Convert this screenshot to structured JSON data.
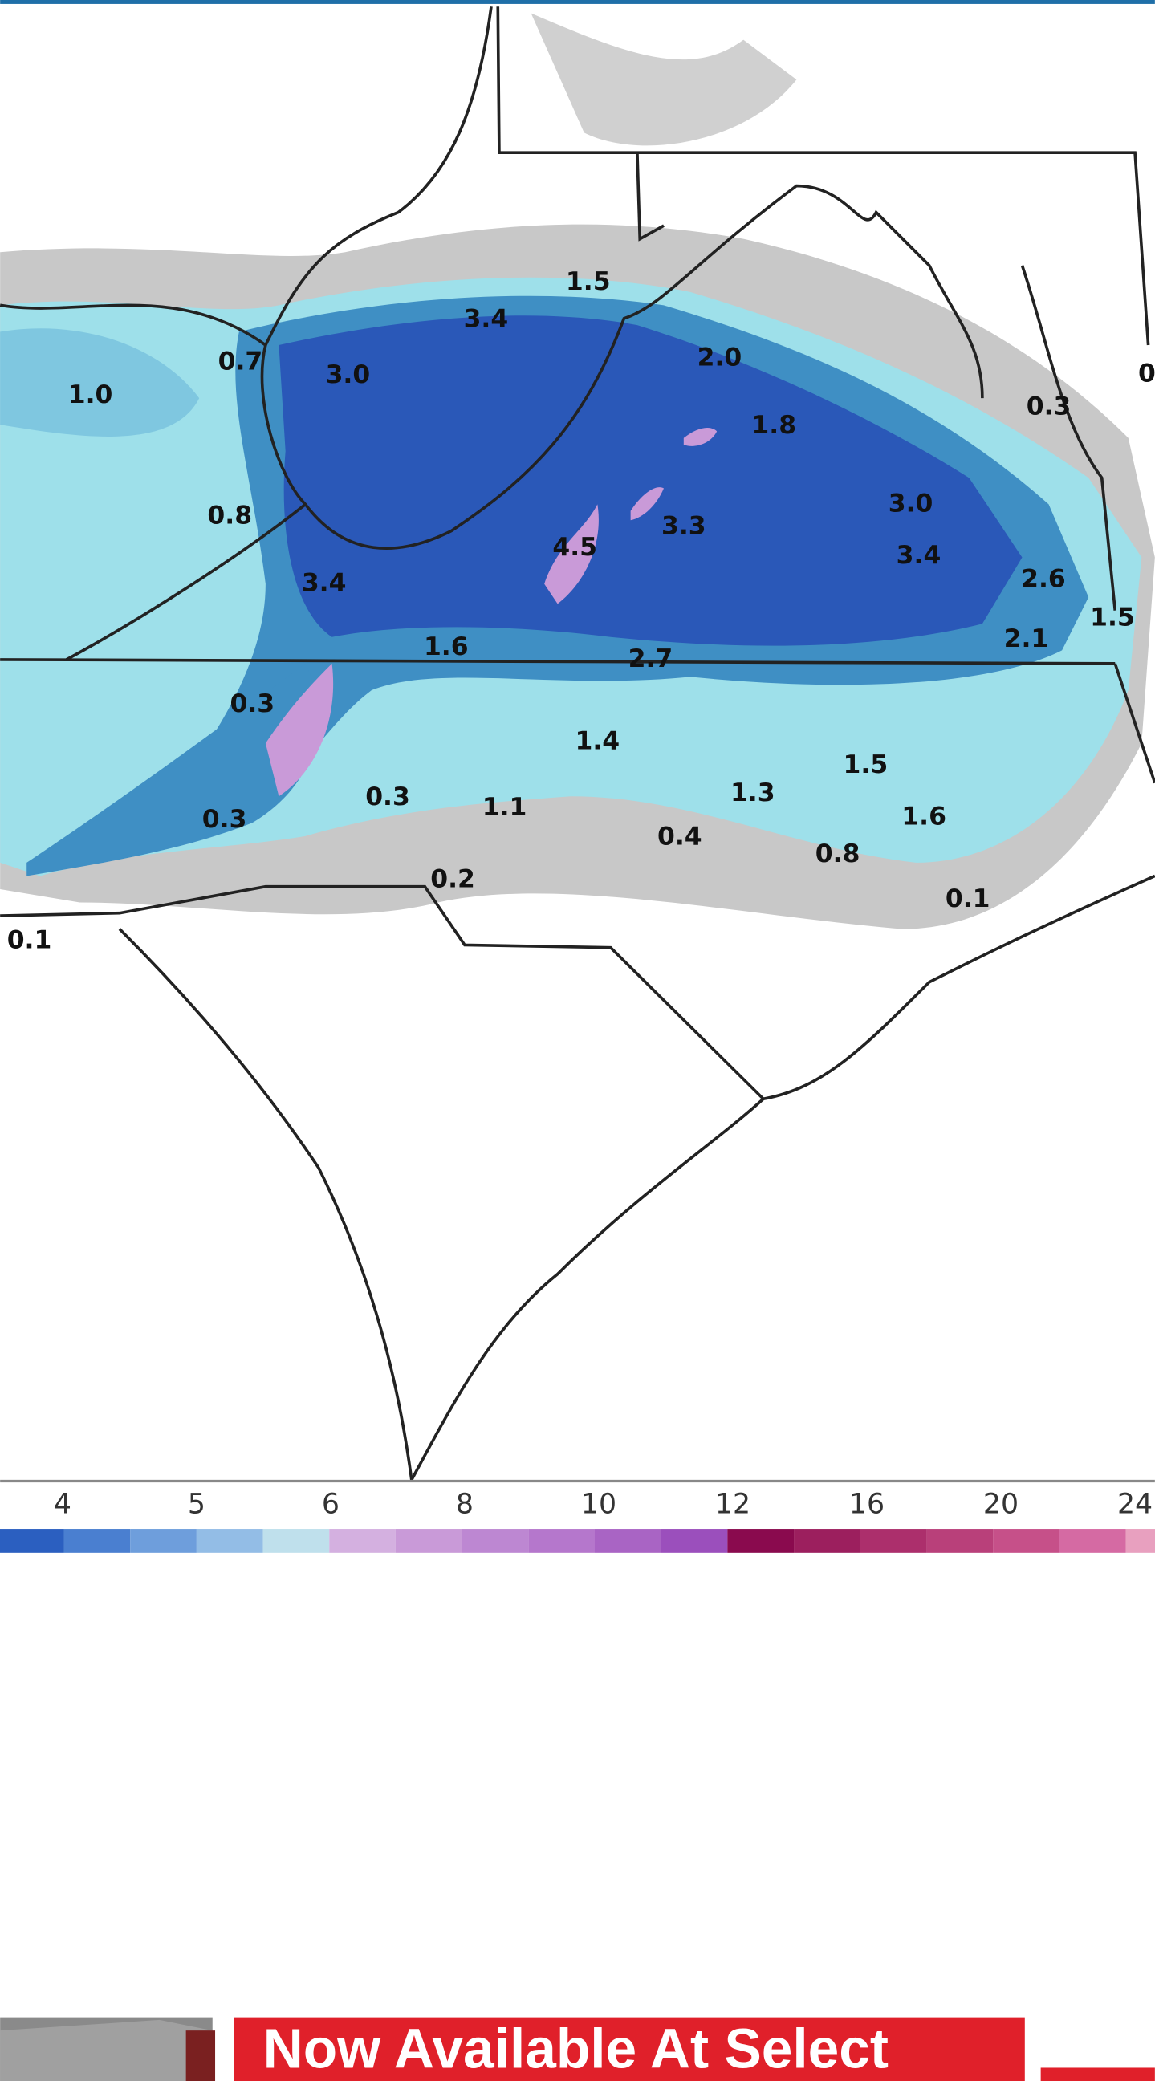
{
  "map": {
    "labels": [
      "1.5",
      "3.4",
      "0.7",
      "3.0",
      "1.0",
      "2.0",
      "1.8",
      "0.3",
      "0",
      "0.8",
      "3.0",
      "3.3",
      "4.5",
      "3.4",
      "3.4",
      "2.6",
      "1.5",
      "2.1",
      "1.6",
      "2.7",
      "0.3",
      "1.4",
      "1.5",
      "1.3",
      "0.3",
      "1.1",
      "1.6",
      "0.3",
      "0.4",
      "0.8",
      "0.2",
      "0.1",
      "0.1"
    ],
    "colorbar": {
      "ticks": [
        "4",
        "5",
        "6",
        "8",
        "10",
        "12",
        "16",
        "20",
        "24"
      ],
      "colors": [
        "#2b5fc0",
        "#4a7fd0",
        "#6e9edc",
        "#93bde6",
        "#bfe0ec",
        "#d4b0e0",
        "#c99ad8",
        "#bd87d2",
        "#b577cc",
        "#a964c4",
        "#9b4fbc",
        "#8a0a4e",
        "#9c1f5e",
        "#ac2f6c",
        "#b9407a",
        "#c65089",
        "#d56aa3",
        "#e8a0bf"
      ]
    }
  },
  "ad": {
    "text": "Now Available At Select"
  }
}
